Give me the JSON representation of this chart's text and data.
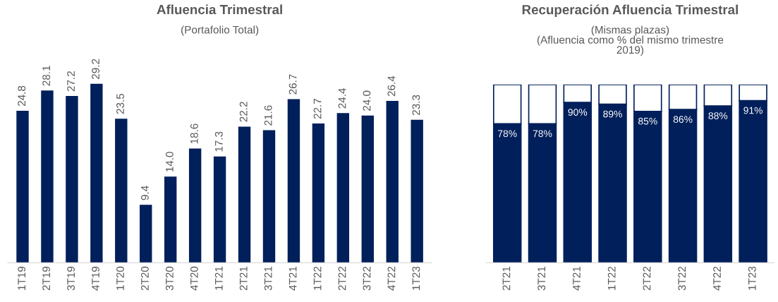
{
  "chart_data": [
    {
      "type": "bar",
      "title": "Afluencia Trimestral",
      "subtitle": "(Portafolio Total)",
      "categories": [
        "1T19",
        "2T19",
        "3T19",
        "4T19",
        "1T20",
        "2T20",
        "3T20",
        "4T20",
        "1T21",
        "2T21",
        "3T21",
        "4T21",
        "1T22",
        "2T22",
        "3T22",
        "4T22",
        "1T23"
      ],
      "series": [
        {
          "color": "#001f5b",
          "values": [
            24.8,
            28.1,
            27.2,
            29.2,
            23.5,
            9.4,
            14.0,
            18.6,
            17.3,
            22.2,
            21.6,
            26.7,
            22.7,
            24.4,
            24.0,
            26.4,
            23.3
          ],
          "value_labels": [
            "24.8",
            "28.1",
            "27.2",
            "29.2",
            "23.5",
            "9.4",
            "14.0",
            "18.6",
            "17.3",
            "22.2",
            "21.6",
            "26.7",
            "22.7",
            "24.4",
            "24.0",
            "26.4",
            "23.3"
          ]
        }
      ],
      "tick_labels": "x",
      "grid": false,
      "legend": false
    },
    {
      "type": "bar",
      "title": "Recuperación Afluencia Trimestral",
      "subtitle": "(Mismas plazas)\n(Afluencia como % del mismo trimestre\n2019)",
      "categories": [
        "2T21",
        "3T21",
        "4T21",
        "1T22",
        "2T22",
        "3T22",
        "4T22",
        "1T23"
      ],
      "stacked": true,
      "series": [
        {
          "color": "#001f5b",
          "values": [
            78,
            78,
            90,
            89,
            85,
            86,
            88,
            91
          ],
          "value_labels": [
            "78%",
            "78%",
            "90%",
            "89%",
            "85%",
            "86%",
            "88%",
            "91%"
          ]
        },
        {
          "color": "#ffffff",
          "values": [
            22,
            22,
            10,
            11,
            15,
            14,
            12,
            9
          ]
        }
      ],
      "ylim": [
        0,
        100
      ],
      "tick_labels": "x",
      "grid": false,
      "legend": false
    }
  ]
}
